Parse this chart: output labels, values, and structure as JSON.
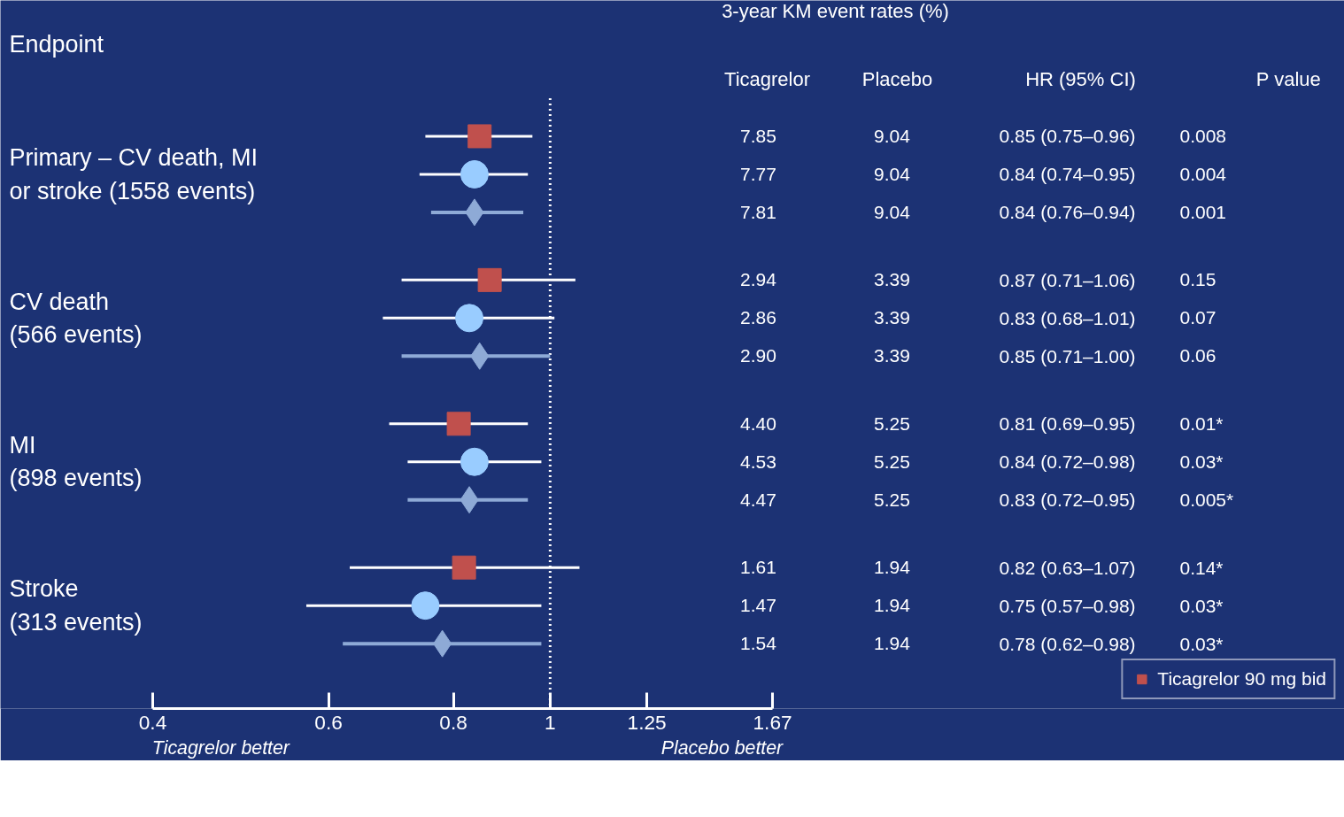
{
  "chart_data": {
    "type": "scatter",
    "orientation": "horizontal",
    "log": "x",
    "ylabel": "Endpoint",
    "categories": [
      "Primary – CV death, MI\nor stroke (1558 events)",
      "CV death\n(566 events)",
      "MI\n(898 events)",
      "Stroke\n(313 events)"
    ],
    "series": [
      {
        "name": "Ticagrelor 90 mg bid",
        "color": "#c0504d",
        "marker": "square",
        "values": [
          0.85,
          0.87,
          0.81,
          0.82
        ],
        "errors": [
          [
            0.75,
            0.96
          ],
          [
            0.71,
            1.06
          ],
          [
            0.69,
            0.95
          ],
          [
            0.63,
            1.07
          ]
        ]
      },
      {
        "color": "#99ccff",
        "marker": "circle",
        "values": [
          0.84,
          0.83,
          0.84,
          0.75
        ],
        "errors": [
          [
            0.74,
            0.95
          ],
          [
            0.68,
            1.01
          ],
          [
            0.72,
            0.98
          ],
          [
            0.57,
            0.98
          ]
        ]
      },
      {
        "color": "#8eaad6",
        "marker": "diamond",
        "values": [
          0.84,
          0.85,
          0.83,
          0.78
        ],
        "errors": [
          [
            0.76,
            0.94
          ],
          [
            0.71,
            1.0
          ],
          [
            0.72,
            0.95
          ],
          [
            0.62,
            0.98
          ]
        ]
      }
    ],
    "xlim": [
      0.4,
      1.67
    ],
    "xticks": [
      0.4,
      0.6,
      0.8,
      1,
      1.25,
      1.67
    ],
    "ref_lines": [
      {
        "axis": "x",
        "value": 1,
        "line_style": "dotted",
        "color": "#ffffff"
      }
    ],
    "legend": "bottom right",
    "annotations": [
      "3-year KM event rates (%)",
      "Ticagrelor",
      "Placebo",
      "HR (95% CI)",
      "P value",
      "Ticagrelor better",
      "Placebo better",
      "7.85",
      "9.04",
      "0.85 (0.75–0.96)",
      "0.008",
      "7.77",
      "9.04",
      "0.84 (0.74–0.95)",
      "0.004",
      "7.81",
      "9.04",
      "0.84 (0.76–0.94)",
      "0.001",
      "2.94",
      "3.39",
      "0.87 (0.71–1.06)",
      "0.15",
      "2.86",
      "3.39",
      "0.83 (0.68–1.01)",
      "0.07",
      "2.90",
      "3.39",
      "0.85 (0.71–1.00)",
      "0.06",
      "4.40",
      "5.25",
      "0.81 (0.69–0.95)",
      "0.01*",
      "4.53",
      "5.25",
      "0.84 (0.72–0.98)",
      "0.03*",
      "4.47",
      "5.25",
      "0.83 (0.72–0.95)",
      "0.005*",
      "1.61",
      "1.94",
      "0.82 (0.63–1.07)",
      "0.14*",
      "1.47",
      "1.94",
      "0.75 (0.57–0.98)",
      "0.03*",
      "1.54",
      "1.94",
      "0.78 (0.62–0.98)",
      "0.03*"
    ]
  }
}
